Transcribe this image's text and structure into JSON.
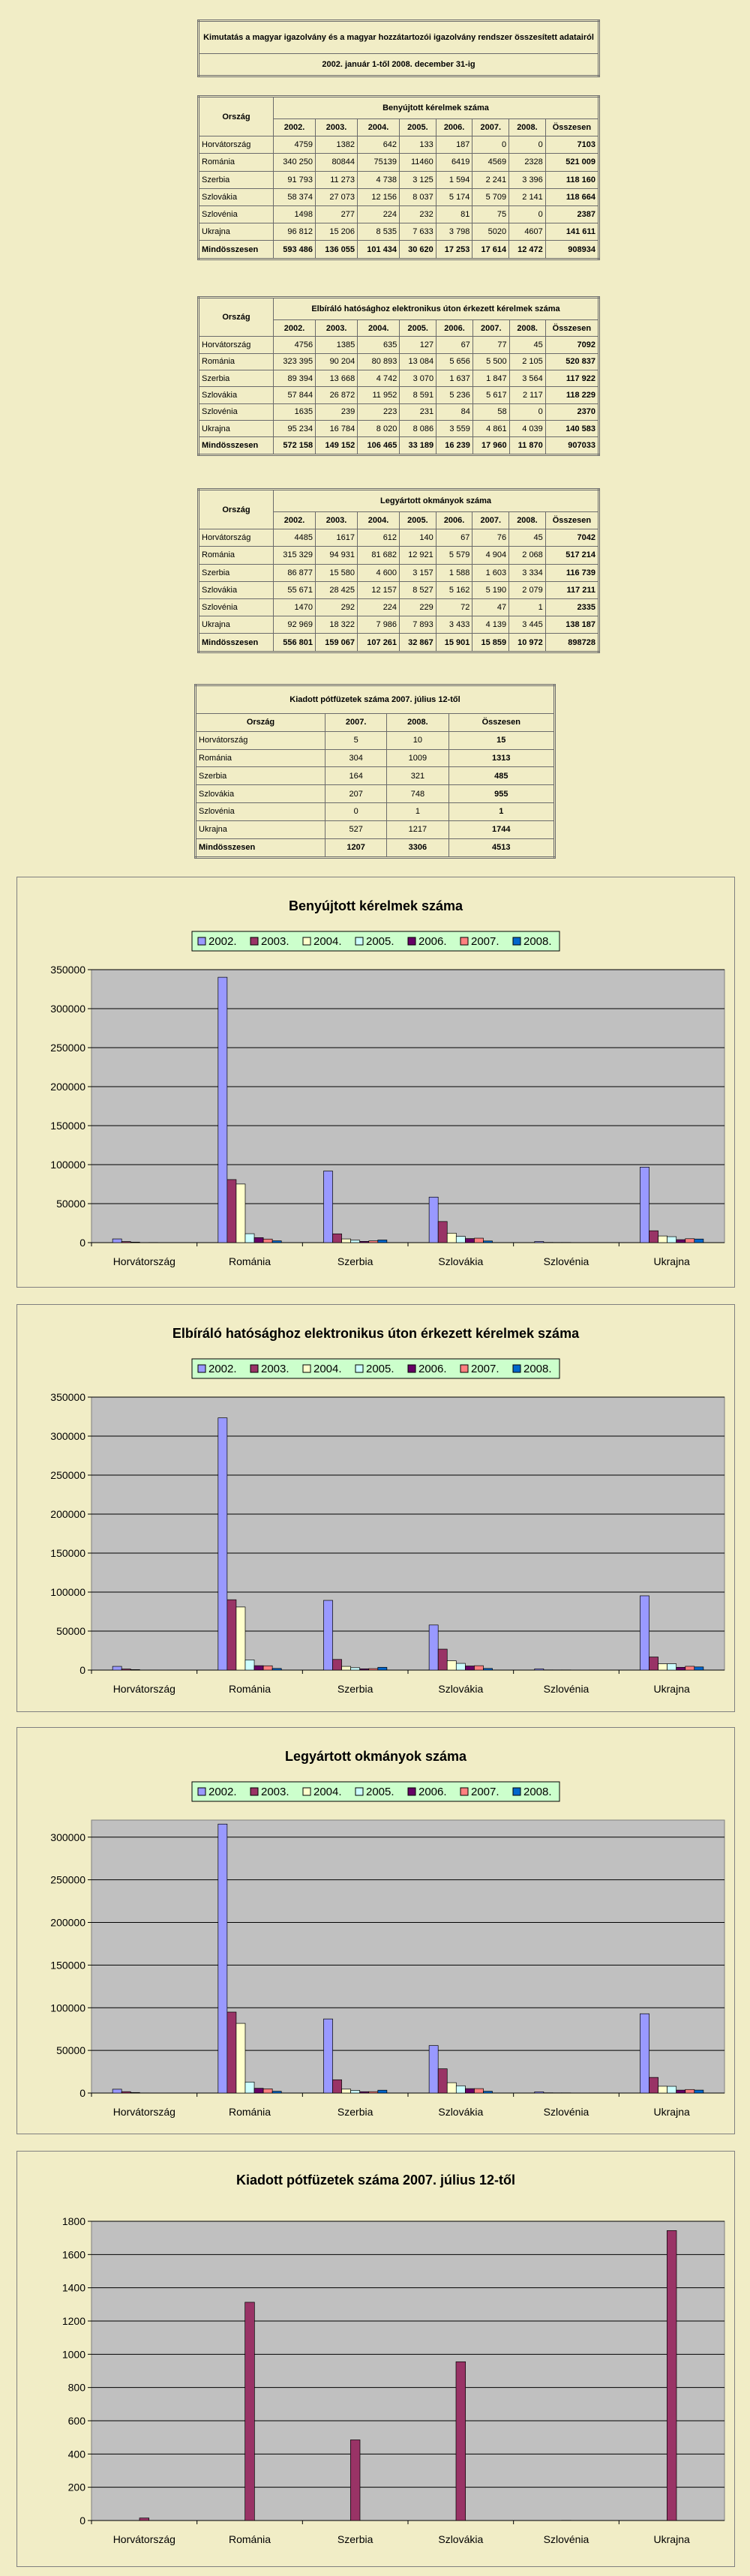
{
  "header": {
    "title": "Kimutatás a magyar igazolvány és a magyar hozzátartozói igazolvány rendszer összesített adatairól",
    "period": "2002.  január 1-től  2008. december 31-ig"
  },
  "tables": [
    {
      "corner": "Ország",
      "title": "Benyújtott kérelmek száma",
      "columns": [
        "2002.",
        "2003.",
        "2004.",
        "2005.",
        "2006.",
        "2007.",
        "2008.",
        "Összesen"
      ],
      "rows": [
        [
          "Horvátország",
          "4759",
          "1382",
          "642",
          "133",
          "187",
          "0",
          "0",
          "7103"
        ],
        [
          "Románia",
          "340 250",
          "80844",
          "75139",
          "11460",
          "6419",
          "4569",
          "2328",
          "521 009"
        ],
        [
          "Szerbia",
          "91 793",
          "11 273",
          "4 738",
          "3 125",
          "1 594",
          "2 241",
          "3 396",
          "118 160"
        ],
        [
          "Szlovákia",
          "58 374",
          "27 073",
          "12 156",
          "8 037",
          "5 174",
          "5 709",
          "2 141",
          "118 664"
        ],
        [
          "Szlovénia",
          "1498",
          "277",
          "224",
          "232",
          "81",
          "75",
          "0",
          "2387"
        ],
        [
          "Ukrajna",
          "96 812",
          "15 206",
          "8 535",
          "7 633",
          "3 798",
          "5020",
          "4607",
          "141 611"
        ],
        [
          "Mindösszesen",
          "593 486",
          "136 055",
          "101 434",
          "30 620",
          "17 253",
          "17 614",
          "12 472",
          "908934"
        ]
      ]
    },
    {
      "corner": "Ország",
      "title": "Elbíráló hatósághoz elektronikus úton érkezett kérelmek száma",
      "columns": [
        "2002.",
        "2003.",
        "2004.",
        "2005.",
        "2006.",
        "2007.",
        "2008.",
        "Összesen"
      ],
      "rows": [
        [
          "Horvátország",
          "4756",
          "1385",
          "635",
          "127",
          "67",
          "77",
          "45",
          "7092"
        ],
        [
          "Románia",
          "323 395",
          "90 204",
          "80 893",
          "13 084",
          "5 656",
          "5 500",
          "2 105",
          "520 837"
        ],
        [
          "Szerbia",
          "89 394",
          "13 668",
          "4 742",
          "3 070",
          "1 637",
          "1 847",
          "3 564",
          "117 922"
        ],
        [
          "Szlovákia",
          "57 844",
          "26 872",
          "11 952",
          "8 591",
          "5 236",
          "5 617",
          "2 117",
          "118 229"
        ],
        [
          "Szlovénia",
          "1635",
          "239",
          "223",
          "231",
          "84",
          "58",
          "0",
          "2370"
        ],
        [
          "Ukrajna",
          "95 234",
          "16 784",
          "8 020",
          "8 086",
          "3 559",
          "4 861",
          "4 039",
          "140 583"
        ],
        [
          "Mindösszesen",
          "572 158",
          "149 152",
          "106 465",
          "33 189",
          "16 239",
          "17 960",
          "11 870",
          "907033"
        ]
      ]
    },
    {
      "corner": "Ország",
      "title": "Legyártott okmányok száma",
      "columns": [
        "2002.",
        "2003.",
        "2004.",
        "2005.",
        "2006.",
        "2007.",
        "2008.",
        "Összesen"
      ],
      "rows": [
        [
          "Horvátország",
          "4485",
          "1617",
          "612",
          "140",
          "67",
          "76",
          "45",
          "7042"
        ],
        [
          "Románia",
          "315 329",
          "94 931",
          "81 682",
          "12 921",
          "5 579",
          "4 904",
          "2 068",
          "517 214"
        ],
        [
          "Szerbia",
          "86 877",
          "15 580",
          "4 600",
          "3 157",
          "1 588",
          "1 603",
          "3 334",
          "116 739"
        ],
        [
          "Szlovákia",
          "55 671",
          "28 425",
          "12 157",
          "8 527",
          "5 162",
          "5 190",
          "2 079",
          "117 211"
        ],
        [
          "Szlovénia",
          "1470",
          "292",
          "224",
          "229",
          "72",
          "47",
          "1",
          "2335"
        ],
        [
          "Ukrajna",
          "92 969",
          "18 322",
          "7 986",
          "7 893",
          "3 433",
          "4 139",
          "3 445",
          "138 187"
        ],
        [
          "Mindösszesen",
          "556 801",
          "159 067",
          "107 261",
          "32 867",
          "15 901",
          "15 859",
          "10 972",
          "898728"
        ]
      ]
    },
    {
      "corner": "Ország",
      "title": "Kiadott pótfüzetek száma 2007. július 12-től",
      "columns": [
        "2007.",
        "2008.",
        "Összesen"
      ],
      "rows": [
        [
          "Horvátország",
          "5",
          "10",
          "15"
        ],
        [
          "Románia",
          "304",
          "1009",
          "1313"
        ],
        [
          "Szerbia",
          "164",
          "321",
          "485"
        ],
        [
          "Szlovákia",
          "207",
          "748",
          "955"
        ],
        [
          "Szlovénia",
          "0",
          "1",
          "1"
        ],
        [
          "Ukrajna",
          "527",
          "1217",
          "1744"
        ],
        [
          "Mindösszesen",
          "1207",
          "3306",
          "4513"
        ]
      ]
    }
  ],
  "chart_data": [
    {
      "type": "bar",
      "title": "Benyújtott kérelmek száma",
      "categories": [
        "Horvátország",
        "Románia",
        "Szerbia",
        "Szlovákia",
        "Szlovénia",
        "Ukrajna"
      ],
      "series": [
        {
          "name": "2002.",
          "color": "#9999ff",
          "values": [
            4759,
            340250,
            91793,
            58374,
            1498,
            96812
          ]
        },
        {
          "name": "2003.",
          "color": "#993366",
          "values": [
            1382,
            80844,
            11273,
            27073,
            277,
            15206
          ]
        },
        {
          "name": "2004.",
          "color": "#ffffcc",
          "values": [
            642,
            75139,
            4738,
            12156,
            224,
            8535
          ]
        },
        {
          "name": "2005.",
          "color": "#ccffff",
          "values": [
            133,
            11460,
            3125,
            8037,
            232,
            7633
          ]
        },
        {
          "name": "2006.",
          "color": "#660066",
          "values": [
            187,
            6419,
            1594,
            5174,
            81,
            3798
          ]
        },
        {
          "name": "2007.",
          "color": "#ff8080",
          "values": [
            0,
            4569,
            2241,
            5709,
            75,
            5020
          ]
        },
        {
          "name": "2008.",
          "color": "#0066cc",
          "values": [
            0,
            2328,
            3396,
            2141,
            0,
            4607
          ]
        }
      ],
      "ylim": [
        0,
        350000
      ],
      "yticks": [
        0,
        50000,
        100000,
        150000,
        200000,
        250000,
        300000,
        350000
      ],
      "grid": true
    },
    {
      "type": "bar",
      "title": "Elbíráló hatósághoz elektronikus úton érkezett kérelmek száma",
      "categories": [
        "Horvátország",
        "Románia",
        "Szerbia",
        "Szlovákia",
        "Szlovénia",
        "Ukrajna"
      ],
      "series": [
        {
          "name": "2002.",
          "color": "#9999ff",
          "values": [
            4756,
            323395,
            89394,
            57844,
            1635,
            95234
          ]
        },
        {
          "name": "2003.",
          "color": "#993366",
          "values": [
            1385,
            90204,
            13668,
            26872,
            239,
            16784
          ]
        },
        {
          "name": "2004.",
          "color": "#ffffcc",
          "values": [
            635,
            80893,
            4742,
            11952,
            223,
            8020
          ]
        },
        {
          "name": "2005.",
          "color": "#ccffff",
          "values": [
            127,
            13084,
            3070,
            8591,
            231,
            8086
          ]
        },
        {
          "name": "2006.",
          "color": "#660066",
          "values": [
            67,
            5656,
            1637,
            5236,
            84,
            3559
          ]
        },
        {
          "name": "2007.",
          "color": "#ff8080",
          "values": [
            77,
            5500,
            1847,
            5617,
            58,
            4861
          ]
        },
        {
          "name": "2008.",
          "color": "#0066cc",
          "values": [
            45,
            2105,
            3564,
            2117,
            0,
            4039
          ]
        }
      ],
      "ylim": [
        0,
        350000
      ],
      "yticks": [
        0,
        50000,
        100000,
        150000,
        200000,
        250000,
        300000,
        350000
      ],
      "grid": true
    },
    {
      "type": "bar",
      "title": "Legyártott okmányok száma",
      "categories": [
        "Horvátország",
        "Románia",
        "Szerbia",
        "Szlovákia",
        "Szlovénia",
        "Ukrajna"
      ],
      "series": [
        {
          "name": "2002.",
          "color": "#9999ff",
          "values": [
            4485,
            315329,
            86877,
            55671,
            1470,
            92969
          ]
        },
        {
          "name": "2003.",
          "color": "#993366",
          "values": [
            1617,
            94931,
            15580,
            28425,
            292,
            18322
          ]
        },
        {
          "name": "2004.",
          "color": "#ffffcc",
          "values": [
            612,
            81682,
            4600,
            12157,
            224,
            7986
          ]
        },
        {
          "name": "2005.",
          "color": "#ccffff",
          "values": [
            140,
            12921,
            3157,
            8527,
            229,
            7893
          ]
        },
        {
          "name": "2006.",
          "color": "#660066",
          "values": [
            67,
            5579,
            1588,
            5162,
            72,
            3433
          ]
        },
        {
          "name": "2007.",
          "color": "#ff8080",
          "values": [
            76,
            4904,
            1603,
            5190,
            47,
            4139
          ]
        },
        {
          "name": "2008.",
          "color": "#0066cc",
          "values": [
            45,
            2068,
            3334,
            2079,
            1,
            3445
          ]
        }
      ],
      "ylim": [
        0,
        320000
      ],
      "yticks": [
        0,
        50000,
        100000,
        150000,
        200000,
        250000,
        300000
      ],
      "grid": true
    },
    {
      "type": "bar",
      "title": "Kiadott pótfüzetek száma 2007. július 12-től",
      "categories": [
        "Horvátország",
        "Románia",
        "Szerbia",
        "Szlovákia",
        "Szlovénia",
        "Ukrajna"
      ],
      "values": [
        15,
        1313,
        485,
        955,
        1,
        1744
      ],
      "color": "#993366",
      "ylim": [
        0,
        1800
      ],
      "yticks": [
        0,
        200,
        400,
        600,
        800,
        1000,
        1200,
        1400,
        1600,
        1800
      ],
      "grid": true
    }
  ]
}
